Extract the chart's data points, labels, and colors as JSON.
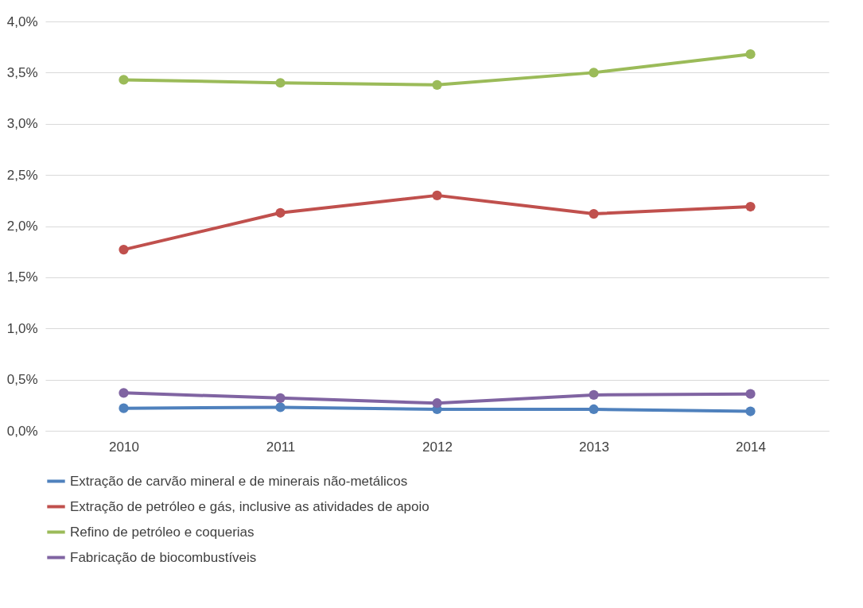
{
  "chart_data": {
    "type": "line",
    "categories": [
      "2010",
      "2011",
      "2012",
      "2013",
      "2014"
    ],
    "series": [
      {
        "name": "Extração de carvão mineral e de minerais não-metálicos",
        "color": "#4f81bd",
        "values": [
          0.22,
          0.23,
          0.21,
          0.21,
          0.19
        ]
      },
      {
        "name": "Extração de petróleo e gás, inclusive as atividades de apoio",
        "color": "#c0504d",
        "values": [
          1.77,
          2.13,
          2.3,
          2.12,
          2.19
        ]
      },
      {
        "name": "Refino de petróleo e coquerias",
        "color": "#9bbb59",
        "values": [
          3.43,
          3.4,
          3.38,
          3.5,
          3.68
        ]
      },
      {
        "name": "Fabricação de biocombustíveis",
        "color": "#8064a2",
        "values": [
          0.37,
          0.32,
          0.27,
          0.35,
          0.36
        ]
      }
    ],
    "ylim": [
      0,
      4
    ],
    "yticks": [
      {
        "value": 0,
        "label": "0,0%"
      },
      {
        "value": 0.5,
        "label": "0,5%"
      },
      {
        "value": 1,
        "label": "1,0%"
      },
      {
        "value": 1.5,
        "label": "1,5%"
      },
      {
        "value": 2,
        "label": "2,0%"
      },
      {
        "value": 2.5,
        "label": "2,5%"
      },
      {
        "value": 3,
        "label": "3,0%"
      },
      {
        "value": 3.5,
        "label": "3,5%"
      },
      {
        "value": 4,
        "label": "4,0%"
      }
    ],
    "grid": "y",
    "legend": "bottom",
    "marker": "circle",
    "line_style": "solid"
  }
}
